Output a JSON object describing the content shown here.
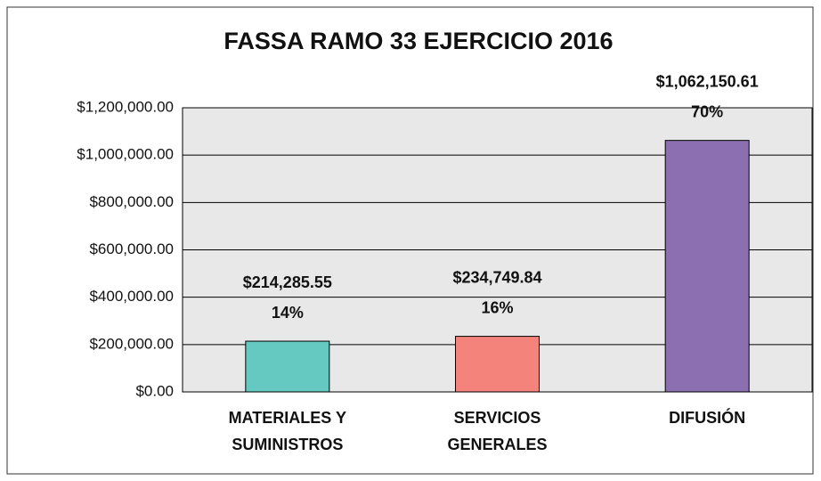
{
  "chart_data": {
    "type": "bar",
    "title": "FASSA RAMO 33 EJERCICIO 2016",
    "categories": [
      [
        "MATERIALES Y",
        "SUMINISTROS"
      ],
      [
        "SERVICIOS",
        "GENERALES"
      ],
      [
        "DIFUSIÓN"
      ]
    ],
    "values": [
      214285.55,
      234749.84,
      1062150.61
    ],
    "value_labels": [
      "$214,285.55",
      "$234,749.84",
      "$1,062,150.61"
    ],
    "percent_labels": [
      "14%",
      "16%",
      "70%"
    ],
    "colors": [
      "#66c9c1",
      "#f4837b",
      "#8b6fb0"
    ],
    "ylim": [
      0,
      1200000
    ],
    "yticks": [
      {
        "value": 0,
        "label": "$0.00"
      },
      {
        "value": 200000,
        "label": "$200,000.00"
      },
      {
        "value": 400000,
        "label": "$400,000.00"
      },
      {
        "value": 600000,
        "label": "$600,000.00"
      },
      {
        "value": 800000,
        "label": "$800,000.00"
      },
      {
        "value": 1000000,
        "label": "$1,000,000.00"
      },
      {
        "value": 1200000,
        "label": "$1,200,000.00"
      }
    ],
    "grid": true
  }
}
